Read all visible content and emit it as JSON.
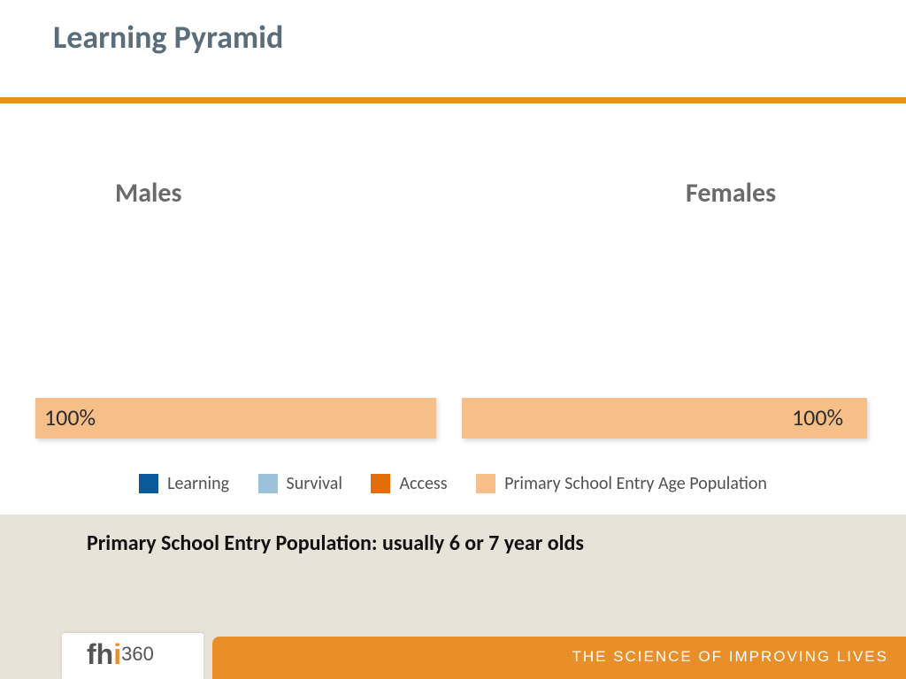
{
  "title": "Learning Pyramid",
  "accent_color": "#e88f2a",
  "title_color": "#5a6d7a",
  "background_color": "#ffffff",
  "lower_band_color": "#e7e3d9",
  "columns": {
    "left": {
      "label": "Males",
      "value_label": "100%",
      "bar_color": "#f6bf8a",
      "width_pct": 100
    },
    "right": {
      "label": "Females",
      "value_label": "100%",
      "bar_color": "#f6bf8a",
      "width_pct": 100
    }
  },
  "legend": [
    {
      "label": "Learning",
      "color": "#0a5a9c"
    },
    {
      "label": "Survival",
      "color": "#9cc1da"
    },
    {
      "label": "Access",
      "color": "#e46c0a"
    },
    {
      "label": "Primary School Entry Age Population",
      "color": "#f6bf8a"
    }
  ],
  "note": "Primary School Entry Population: usually 6 or 7 year olds",
  "footer": {
    "tagline": "THE SCIENCE OF IMPROVING LIVES",
    "logo": {
      "part1": "fh",
      "part2": "i",
      "part3": "360"
    }
  },
  "typography": {
    "title_fontsize": 36,
    "column_label_fontsize": 30,
    "bar_label_fontsize": 26,
    "legend_fontsize": 20,
    "note_fontsize": 24,
    "tagline_fontsize": 17
  }
}
